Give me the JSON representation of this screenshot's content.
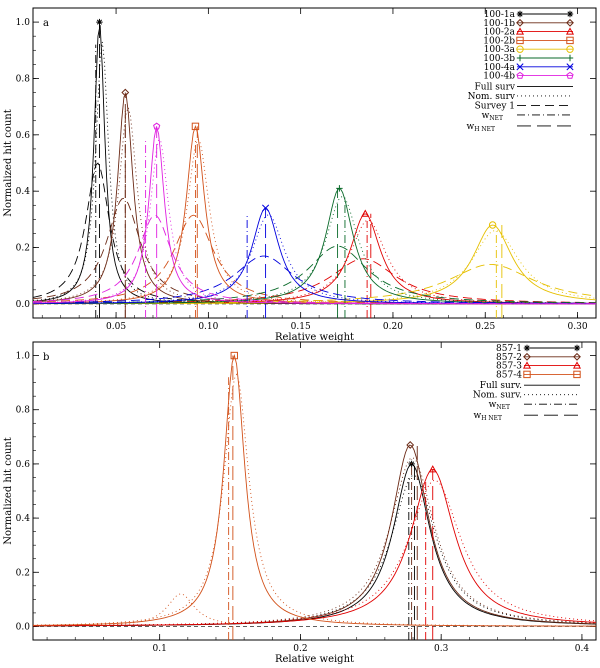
{
  "chart_data": [
    {
      "type": "line",
      "panel_letter": "a",
      "xlabel": "Relative weight",
      "ylabel": "Normalized hit count",
      "xlim": [
        0.005,
        0.31
      ],
      "ylim": [
        -0.05,
        1.05
      ],
      "xticks": [
        0.05,
        0.1,
        0.15,
        0.2,
        0.25,
        0.3
      ],
      "xtick_labels": [
        "0.05",
        "0.10",
        "0.15",
        "0.20",
        "0.25",
        "0.30"
      ],
      "yticks": [
        0.0,
        0.2,
        0.4,
        0.6,
        0.8,
        1.0
      ],
      "ytick_labels": [
        "0.0",
        "0.2",
        "0.4",
        "0.6",
        "0.8",
        "1.0"
      ],
      "legend_position": "top-right",
      "series": [
        {
          "name": "100-1a",
          "color": "#000000",
          "marker": "asterisk",
          "peak_x": 0.041,
          "peak_y": 1.0,
          "width": 0.0035,
          "wnet": 0.039,
          "whnet": 0.041
        },
        {
          "name": "100-1b",
          "color": "#6b2a16",
          "marker": "diamond",
          "peak_x": 0.055,
          "peak_y": 0.75,
          "width": 0.005,
          "wnet": 0.055,
          "whnet": 0.055
        },
        {
          "name": "100-2a",
          "color": "#e00000",
          "marker": "triangle",
          "peak_x": 0.185,
          "peak_y": 0.32,
          "width": 0.01,
          "wnet": 0.186,
          "whnet": 0.188
        },
        {
          "name": "100-2b",
          "color": "#d2511a",
          "marker": "square",
          "peak_x": 0.093,
          "peak_y": 0.63,
          "width": 0.006,
          "wnet": 0.093,
          "whnet": 0.094
        },
        {
          "name": "100-3a",
          "color": "#e6c000",
          "marker": "circle",
          "peak_x": 0.254,
          "peak_y": 0.28,
          "width": 0.013,
          "wnet": 0.256,
          "whnet": 0.259
        },
        {
          "name": "100-3b",
          "color": "#0a6a2a",
          "marker": "plus",
          "peak_x": 0.171,
          "peak_y": 0.41,
          "width": 0.009,
          "wnet": 0.174,
          "whnet": 0.17
        },
        {
          "name": "100-4a",
          "color": "#0000dd",
          "marker": "x",
          "peak_x": 0.131,
          "peak_y": 0.34,
          "width": 0.009,
          "wnet": 0.121,
          "whnet": 0.131
        },
        {
          "name": "100-4b",
          "color": "#e020e0",
          "marker": "pentagon",
          "peak_x": 0.072,
          "peak_y": 0.63,
          "width": 0.005,
          "wnet": 0.066,
          "whnet": 0.072
        }
      ],
      "linestyles": [
        {
          "name": "Full surv",
          "dash": ""
        },
        {
          "name": "Nom. surv",
          "dash": "1,3"
        },
        {
          "name": "Survey 1",
          "dash": "9,5"
        },
        {
          "name": "w",
          "sub": "NET",
          "dash": "8,3,1,3"
        },
        {
          "name": "w",
          "sub": "H NET",
          "dash": "14,6"
        }
      ]
    },
    {
      "type": "line",
      "panel_letter": "b",
      "xlabel": "Relative weight",
      "ylabel": "Normalized hit count",
      "xlim": [
        0.01,
        0.41
      ],
      "ylim": [
        -0.05,
        1.05
      ],
      "xticks": [
        0.1,
        0.2,
        0.3,
        0.4
      ],
      "xtick_labels": [
        "0.1",
        "0.2",
        "0.3",
        "0.4"
      ],
      "yticks": [
        0.0,
        0.2,
        0.4,
        0.6,
        0.8,
        1.0
      ],
      "ytick_labels": [
        "0.0",
        "0.2",
        "0.4",
        "0.6",
        "0.8",
        "1.0"
      ],
      "legend_position": "top-right",
      "series": [
        {
          "name": "857-1",
          "color": "#000000",
          "marker": "asterisk",
          "peak_x": 0.279,
          "peak_y": 0.6,
          "width": 0.016,
          "wnet": 0.277,
          "whnet": 0.281
        },
        {
          "name": "857-2",
          "color": "#6b2a16",
          "marker": "diamond",
          "peak_x": 0.278,
          "peak_y": 0.67,
          "width": 0.016,
          "wnet": 0.279,
          "whnet": 0.283
        },
        {
          "name": "857-3",
          "color": "#e00000",
          "marker": "triangle",
          "peak_x": 0.294,
          "peak_y": 0.58,
          "width": 0.019,
          "wnet": 0.289,
          "whnet": 0.294
        },
        {
          "name": "857-4",
          "color": "#d2511a",
          "marker": "square",
          "peak_x": 0.153,
          "peak_y": 1.0,
          "width": 0.009,
          "wnet": 0.149,
          "whnet": 0.152
        }
      ],
      "linestyles": [
        {
          "name": "Full surv.",
          "dash": ""
        },
        {
          "name": "Nom. surv.",
          "dash": "1,3"
        },
        {
          "name": "w",
          "sub": "NET",
          "dash": "8,3,1,3"
        },
        {
          "name": "w",
          "sub": "H NET",
          "dash": "14,6"
        }
      ]
    }
  ]
}
